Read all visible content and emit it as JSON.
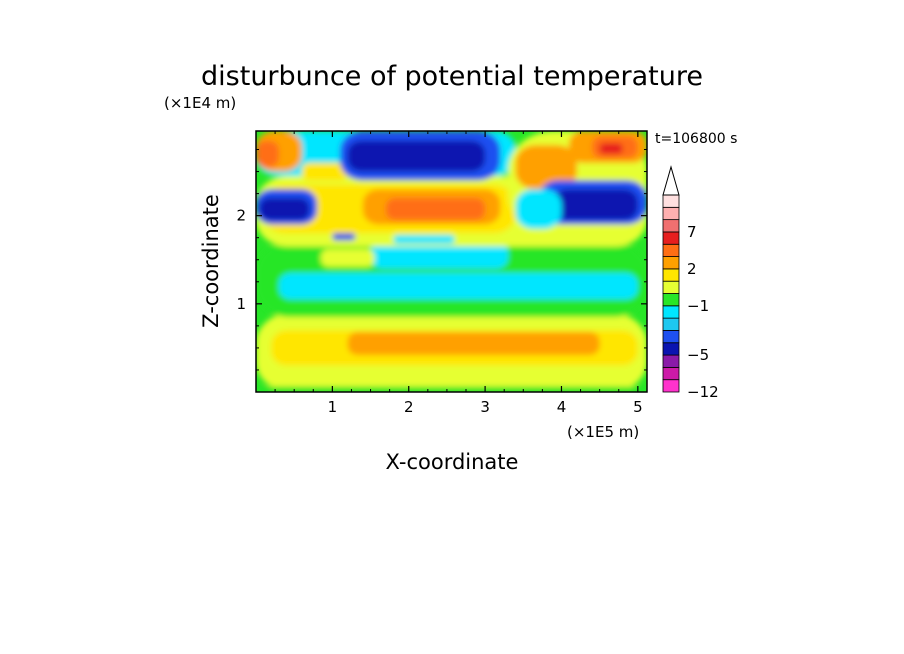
{
  "chart_data": {
    "type": "heatmap",
    "title": "disturbunce of potential temperature",
    "xlabel": "X-coordinate",
    "ylabel": "Z-coordinate",
    "x_scale_label": "(×1E5 m)",
    "y_scale_label": "(×1E4 m)",
    "time_label": "t=106800 s",
    "xlim": [
      0,
      5.12
    ],
    "ylim": [
      0,
      2.96
    ],
    "x_ticks": [
      1,
      2,
      3,
      4,
      5
    ],
    "x_tick_labels": [
      "1",
      "2",
      "3",
      "4",
      "5"
    ],
    "y_ticks": [
      1,
      2
    ],
    "y_tick_labels": [
      "1",
      "2"
    ],
    "colorbar": {
      "levels": [
        -12,
        -9,
        -7,
        -5,
        -4,
        -3,
        -2,
        -1,
        0,
        1,
        2,
        3,
        5,
        7,
        9,
        12
      ],
      "colors": [
        "#ff33cc",
        "#cc1aa8",
        "#8a1aa8",
        "#0a14b0",
        "#1e50f0",
        "#1ec8f0",
        "#00e6ff",
        "#28e628",
        "#e6ff33",
        "#ffe600",
        "#ffa000",
        "#ff6e14",
        "#e61e1e",
        "#f07070",
        "#ffb0b0",
        "#ffe0e0"
      ],
      "labeled_values": [
        7,
        2,
        -1,
        -5,
        -12
      ],
      "labels": [
        "7",
        "2",
        "−1",
        "−5",
        "−12"
      ],
      "extend": "max"
    },
    "field_blobs": [
      {
        "x0": 0.0,
        "x1": 5.12,
        "z0": 0.0,
        "z1": 0.9,
        "color": "#e6ff33"
      },
      {
        "x0": 0.2,
        "x1": 5.0,
        "z0": 0.3,
        "z1": 0.7,
        "color": "#ffe600"
      },
      {
        "x0": 1.2,
        "x1": 4.5,
        "z0": 0.42,
        "z1": 0.68,
        "color": "#ffa000"
      },
      {
        "x0": 0.0,
        "x1": 5.12,
        "z0": 0.0,
        "z1": 0.06,
        "color": "#28e628"
      },
      {
        "x0": 0.0,
        "x1": 5.12,
        "z0": 0.85,
        "z1": 1.7,
        "color": "#28e628"
      },
      {
        "x0": 0.3,
        "x1": 5.0,
        "z0": 1.05,
        "z1": 1.35,
        "color": "#00e6ff"
      },
      {
        "x0": 1.5,
        "x1": 3.3,
        "z0": 1.4,
        "z1": 1.7,
        "color": "#00e6ff"
      },
      {
        "x0": 0.85,
        "x1": 1.55,
        "z0": 1.42,
        "z1": 1.62,
        "color": "#e6ff33"
      },
      {
        "x0": 0.0,
        "x1": 5.12,
        "z0": 1.65,
        "z1": 2.45,
        "color": "#e6ff33"
      },
      {
        "x0": 0.1,
        "x1": 3.4,
        "z0": 1.8,
        "z1": 2.35,
        "color": "#ffe600"
      },
      {
        "x0": 1.4,
        "x1": 3.2,
        "z0": 1.9,
        "z1": 2.3,
        "color": "#ffa000"
      },
      {
        "x0": 1.7,
        "x1": 3.0,
        "z0": 1.95,
        "z1": 2.2,
        "color": "#ff6e14"
      },
      {
        "x0": 1.8,
        "x1": 2.6,
        "z0": 1.68,
        "z1": 1.78,
        "color": "#00e6ff"
      },
      {
        "x0": 1.0,
        "x1": 1.3,
        "z0": 1.72,
        "z1": 1.8,
        "color": "#1e50f0"
      },
      {
        "x0": 0.0,
        "x1": 0.8,
        "z0": 1.9,
        "z1": 2.3,
        "color": "#1e50f0"
      },
      {
        "x0": 0.05,
        "x1": 0.7,
        "z0": 1.95,
        "z1": 2.2,
        "color": "#0a14b0"
      },
      {
        "x0": 0.0,
        "x1": 3.4,
        "z0": 2.45,
        "z1": 2.96,
        "color": "#00e6ff"
      },
      {
        "x0": 0.0,
        "x1": 0.6,
        "z0": 2.5,
        "z1": 2.96,
        "color": "#ffa000"
      },
      {
        "x0": 0.0,
        "x1": 0.3,
        "z0": 2.55,
        "z1": 2.85,
        "color": "#ff6e14"
      },
      {
        "x0": 0.6,
        "x1": 1.2,
        "z0": 2.4,
        "z1": 2.6,
        "color": "#ffe600"
      },
      {
        "x0": 1.1,
        "x1": 3.2,
        "z0": 2.4,
        "z1": 2.96,
        "color": "#1e50f0"
      },
      {
        "x0": 1.2,
        "x1": 3.0,
        "z0": 2.5,
        "z1": 2.85,
        "color": "#0a14b0"
      },
      {
        "x0": 3.3,
        "x1": 5.12,
        "z0": 1.8,
        "z1": 2.96,
        "color": "#e6ff33"
      },
      {
        "x0": 3.4,
        "x1": 4.2,
        "z0": 2.3,
        "z1": 2.8,
        "color": "#ffa000"
      },
      {
        "x0": 4.1,
        "x1": 5.12,
        "z0": 2.6,
        "z1": 2.96,
        "color": "#ffa000"
      },
      {
        "x0": 4.4,
        "x1": 5.0,
        "z0": 2.65,
        "z1": 2.9,
        "color": "#ff6e14"
      },
      {
        "x0": 4.5,
        "x1": 4.8,
        "z0": 2.7,
        "z1": 2.82,
        "color": "#e61e1e"
      },
      {
        "x0": 3.7,
        "x1": 5.12,
        "z0": 1.9,
        "z1": 2.4,
        "color": "#1e50f0"
      },
      {
        "x0": 3.9,
        "x1": 5.0,
        "z0": 1.95,
        "z1": 2.3,
        "color": "#0a14b0"
      },
      {
        "x0": 3.4,
        "x1": 4.0,
        "z0": 1.85,
        "z1": 2.3,
        "color": "#00e6ff"
      }
    ]
  }
}
